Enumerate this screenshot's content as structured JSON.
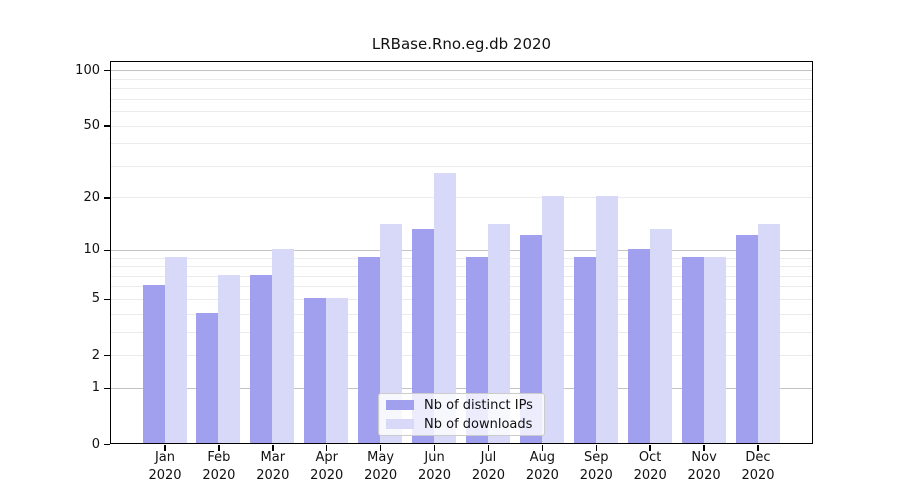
{
  "title": "LRBase.Rno.eg.db 2020",
  "legend": {
    "items": [
      {
        "label": "Nb of distinct IPs",
        "color": "#a0a0ee"
      },
      {
        "label": "Nb of downloads",
        "color": "#d8d8f8"
      }
    ]
  },
  "chart_data": {
    "type": "bar",
    "title": "LRBase.Rno.eg.db 2020",
    "categories": [
      "Jan 2020",
      "Feb 2020",
      "Mar 2020",
      "Apr 2020",
      "May 2020",
      "Jun 2020",
      "Jul 2020",
      "Aug 2020",
      "Sep 2020",
      "Oct 2020",
      "Nov 2020",
      "Dec 2020"
    ],
    "x_tick_months": [
      "Jan",
      "Feb",
      "Mar",
      "Apr",
      "May",
      "Jun",
      "Jul",
      "Aug",
      "Sep",
      "Oct",
      "Nov",
      "Dec"
    ],
    "x_tick_year": "2020",
    "series": [
      {
        "name": "Nb of distinct IPs",
        "color": "#a0a0ee",
        "values": [
          6,
          4,
          7,
          5,
          9,
          13,
          9,
          12,
          9,
          10,
          9,
          12
        ]
      },
      {
        "name": "Nb of downloads",
        "color": "#d8d8f8",
        "values": [
          9,
          7,
          10,
          5,
          14,
          27,
          14,
          20,
          20,
          13,
          9,
          14
        ]
      }
    ],
    "xlabel": "",
    "ylabel": "",
    "y_scale": "log10(1+v)",
    "y_ticks": [
      0,
      1,
      2,
      5,
      10,
      20,
      50,
      100
    ],
    "major_gridlines": [
      1,
      10,
      100
    ],
    "minor_gridlines": [
      2,
      3,
      4,
      5,
      6,
      7,
      8,
      9,
      20,
      30,
      40,
      50,
      60,
      70,
      80,
      90
    ],
    "ylim": [
      0,
      113
    ],
    "grid": true,
    "legend_position": "inside lower center"
  }
}
